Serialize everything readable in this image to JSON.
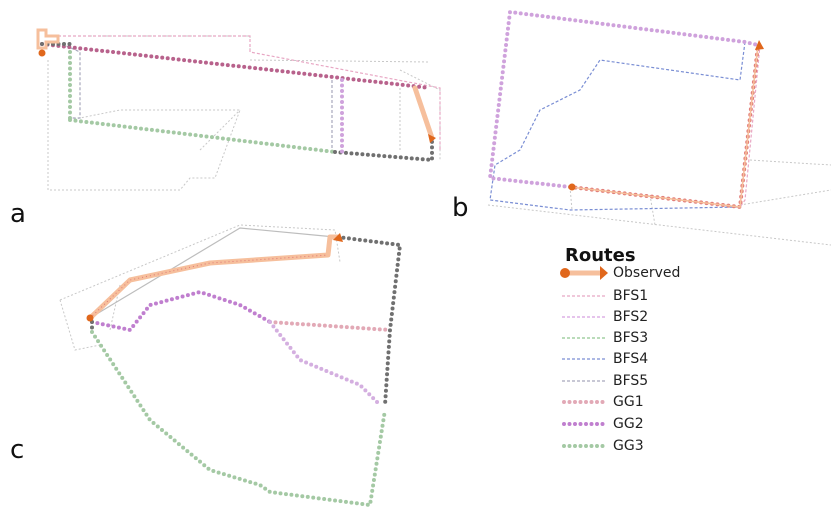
{
  "panels": [
    {
      "label": "a"
    },
    {
      "label": "b"
    },
    {
      "label": "c"
    }
  ],
  "legend": {
    "title": "Routes",
    "items": [
      "Observed",
      "BFS1",
      "BFS2",
      "BFS3",
      "BFS4",
      "BFS5",
      "GG1",
      "GG2",
      "GG3"
    ]
  }
}
